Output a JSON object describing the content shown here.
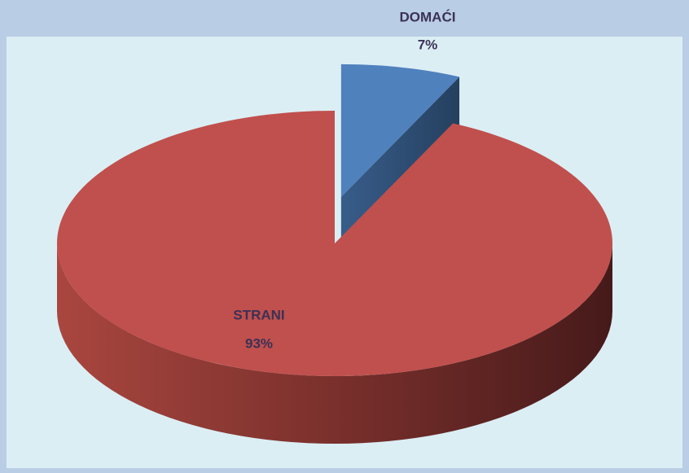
{
  "chart_data": {
    "type": "pie",
    "categories": [
      "DOMAĆI",
      "STRANI"
    ],
    "values": [
      7,
      93
    ],
    "value_labels": [
      "7%",
      "93%"
    ],
    "colors": [
      "#4f81bd",
      "#c0504d"
    ],
    "explode": [
      true,
      false
    ]
  }
}
